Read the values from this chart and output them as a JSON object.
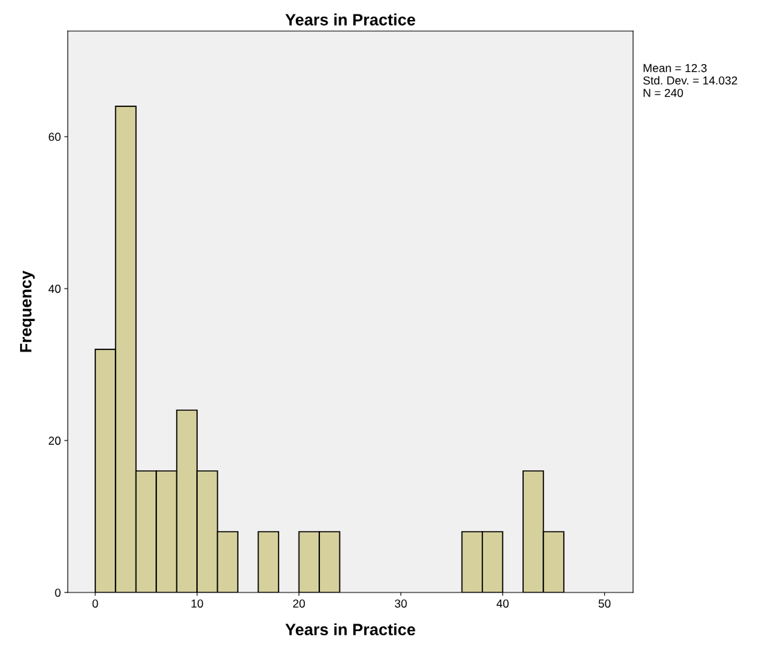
{
  "chart_data": {
    "type": "histogram",
    "title": "Years in Practice",
    "xlabel": "Years in Practice",
    "ylabel": "Frequency",
    "bins": [
      0,
      2,
      4,
      6,
      8,
      10,
      12,
      14,
      16,
      18,
      20,
      22,
      24,
      26,
      28,
      30,
      32,
      34,
      36,
      38,
      40,
      42,
      44,
      46
    ],
    "values": [
      32,
      64,
      16,
      16,
      24,
      16,
      8,
      0,
      8,
      0,
      8,
      8,
      0,
      0,
      0,
      0,
      0,
      0,
      8,
      8,
      0,
      16,
      8
    ],
    "color": "#d6d09c",
    "xlim": [
      -2.7,
      52.8
    ],
    "xticks": [
      0,
      10,
      20,
      30,
      40,
      50
    ],
    "ylim": [
      0,
      73.9
    ],
    "yticks": [
      0,
      20,
      40,
      60
    ],
    "grid": false,
    "annotations": [
      "Mean = 12.3",
      "Std. Dev. = 14.032",
      "N = 240"
    ]
  }
}
